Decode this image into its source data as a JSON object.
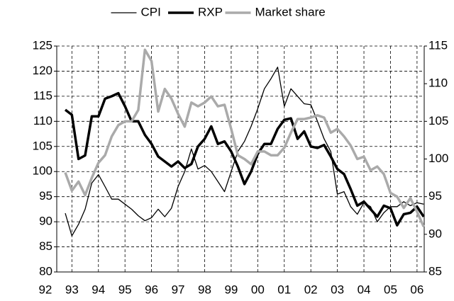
{
  "chart_data": {
    "type": "line",
    "x": [
      1992.75,
      1993,
      1993.25,
      1993.5,
      1993.75,
      1994,
      1994.25,
      1994.5,
      1994.75,
      1995,
      1995.25,
      1995.5,
      1995.75,
      1996,
      1996.25,
      1996.5,
      1996.75,
      1997,
      1997.25,
      1997.5,
      1997.75,
      1998,
      1998.25,
      1998.5,
      1998.75,
      1999,
      1999.25,
      1999.5,
      1999.75,
      2000,
      2000.25,
      2000.5,
      2000.75,
      2001,
      2001.25,
      2001.5,
      2001.75,
      2002,
      2002.25,
      2002.5,
      2002.75,
      2003,
      2003.25,
      2003.5,
      2003.75,
      2004,
      2004.25,
      2004.5,
      2004.75,
      2005,
      2005.25,
      2005.5,
      2005.75,
      2006,
      2006.25
    ],
    "series": [
      {
        "name": "CPI",
        "color": "#000000",
        "values": [
          91.7,
          87.2,
          89.5,
          92.5,
          97.7,
          99.4,
          97,
          94.5,
          94.5,
          93.5,
          92.5,
          91.2,
          90.2,
          90.8,
          92.5,
          91,
          92.7,
          97,
          100,
          104.5,
          100.5,
          101.2,
          100,
          98,
          96,
          100,
          104,
          106,
          109,
          112.5,
          116.5,
          118.5,
          120.8,
          113,
          116.5,
          115,
          113.5,
          113.3,
          110,
          106.5,
          104,
          95.5,
          96,
          93,
          91.5,
          93.8,
          93,
          90,
          91.8,
          93,
          93,
          94,
          93.2,
          93.8,
          93.5
        ]
      },
      {
        "name": "RXP",
        "color": "#000000",
        "values": [
          112.3,
          111.3,
          102.5,
          103.2,
          111,
          111,
          114.5,
          115,
          115.6,
          113,
          110,
          110,
          107.3,
          105.5,
          103,
          102,
          101,
          102,
          100.7,
          101.5,
          105,
          106.5,
          109,
          105.5,
          106,
          104,
          101,
          97.5,
          100,
          103.5,
          105.5,
          105.5,
          108.5,
          110.3,
          110.6,
          106.5,
          108,
          105,
          104.7,
          105.3,
          103,
          100.5,
          99.5,
          96.5,
          93.2,
          94,
          92.5,
          91,
          93.2,
          92.7,
          89.3,
          91.5,
          91.8,
          93,
          91
        ]
      },
      {
        "name": "Market share",
        "color": "#aaaaaa",
        "axis": "y2",
        "values": [
          98.2,
          95.8,
          97,
          95.2,
          97.5,
          99.5,
          100.5,
          103,
          104.5,
          105,
          105,
          106.5,
          114.5,
          113,
          106.3,
          109.3,
          108,
          106,
          104.3,
          107.5,
          107,
          107.5,
          108.3,
          107,
          107.2,
          104,
          100.5,
          100,
          99.3,
          101,
          101,
          100.5,
          100.5,
          101.5,
          103.5,
          105.3,
          105.3,
          105.5,
          105.8,
          105.5,
          103.5,
          104,
          103,
          101.8,
          100,
          100.3,
          98.5,
          99,
          98,
          95.5,
          95,
          93.5,
          94.8,
          93,
          91
        ]
      }
    ],
    "xlim": [
      1992.43,
      2006.27
    ],
    "xticks": [
      {
        "value": 1992,
        "label": "92"
      },
      {
        "value": 1993,
        "label": "93"
      },
      {
        "value": 1994,
        "label": "94"
      },
      {
        "value": 1995,
        "label": "95"
      },
      {
        "value": 1996,
        "label": "96"
      },
      {
        "value": 1997,
        "label": "97"
      },
      {
        "value": 1998,
        "label": "98"
      },
      {
        "value": 1999,
        "label": "99"
      },
      {
        "value": 2000,
        "label": "00"
      },
      {
        "value": 2001,
        "label": "01"
      },
      {
        "value": 2002,
        "label": "02"
      },
      {
        "value": 2003,
        "label": "03"
      },
      {
        "value": 2004,
        "label": "04"
      },
      {
        "value": 2005,
        "label": "05"
      },
      {
        "value": 2006,
        "label": "06"
      }
    ],
    "ylim": [
      80,
      125
    ],
    "yticks": [
      80,
      85,
      90,
      95,
      100,
      105,
      110,
      115,
      120,
      125
    ],
    "y2lim": [
      85,
      115
    ],
    "y2ticks": [
      85,
      90,
      95,
      100,
      105,
      110,
      115
    ],
    "grid": true,
    "legend": "top"
  }
}
